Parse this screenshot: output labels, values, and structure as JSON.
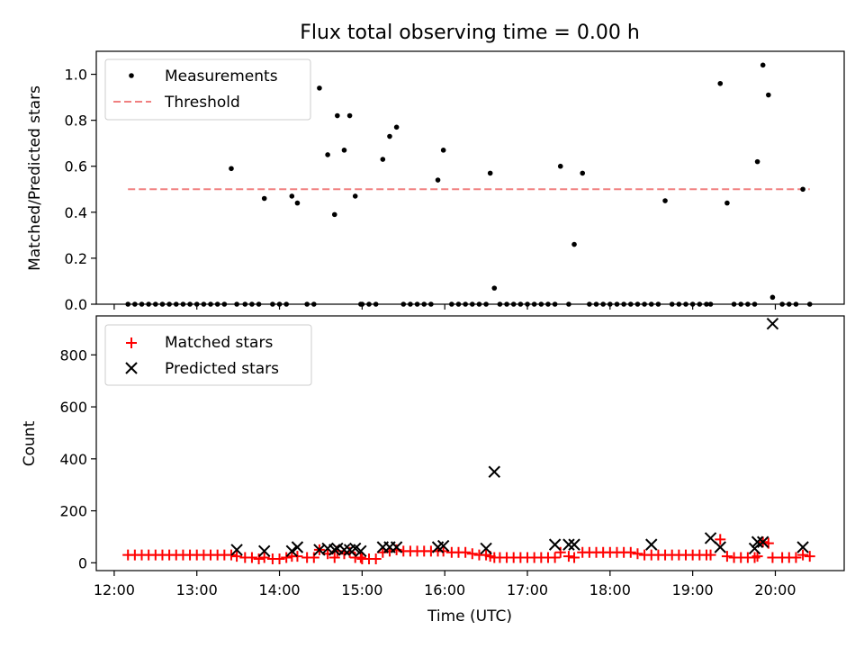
{
  "chart_data": [
    {
      "type": "scatter",
      "title": "Flux total observing time = 0.00 h",
      "ylabel": "Matched/Predicted stars",
      "ylim": [
        0,
        1.1
      ],
      "yticks": [
        "0.0",
        "0.2",
        "0.4",
        "0.6",
        "0.8",
        "1.0"
      ],
      "xlim": [
        "11:47",
        "20:50"
      ],
      "grid": false,
      "legend_position": "top-left",
      "threshold": {
        "name": "Threshold",
        "value": 0.5,
        "x_start": "12:10",
        "x_end": "20:25",
        "color": "#f08080"
      },
      "series": [
        {
          "name": "Measurements",
          "marker": "dot",
          "color": "#000000",
          "x": [
            "12:10",
            "12:15",
            "12:20",
            "12:25",
            "12:30",
            "12:35",
            "12:40",
            "12:45",
            "12:50",
            "12:55",
            "13:00",
            "13:05",
            "13:10",
            "13:15",
            "13:20",
            "13:25",
            "13:29",
            "13:35",
            "13:40",
            "13:45",
            "13:49",
            "13:55",
            "14:00",
            "14:05",
            "14:09",
            "14:13",
            "14:20",
            "14:25",
            "14:29",
            "14:35",
            "14:40",
            "14:42",
            "14:47",
            "14:51",
            "14:55",
            "14:59",
            "15:00",
            "15:05",
            "15:10",
            "15:15",
            "15:20",
            "15:25",
            "15:30",
            "15:35",
            "15:40",
            "15:45",
            "15:50",
            "15:55",
            "15:59",
            "16:05",
            "16:10",
            "16:15",
            "16:20",
            "16:25",
            "16:30",
            "16:33",
            "16:36",
            "16:40",
            "16:45",
            "16:50",
            "16:55",
            "17:00",
            "17:05",
            "17:10",
            "17:15",
            "17:20",
            "17:24",
            "17:30",
            "17:34",
            "17:40",
            "17:45",
            "17:50",
            "17:55",
            "18:00",
            "18:05",
            "18:10",
            "18:15",
            "18:20",
            "18:25",
            "18:30",
            "18:35",
            "18:40",
            "18:45",
            "18:50",
            "18:55",
            "19:00",
            "19:05",
            "19:10",
            "19:13",
            "19:20",
            "19:25",
            "19:30",
            "19:35",
            "19:40",
            "19:45",
            "19:47",
            "19:51",
            "19:55",
            "19:58",
            "20:05",
            "20:10",
            "20:15",
            "20:20",
            "20:25"
          ],
          "y": [
            0,
            0,
            0,
            0,
            0,
            0,
            0,
            0,
            0,
            0,
            0,
            0,
            0,
            0,
            0,
            0.59,
            0,
            0,
            0,
            0,
            0.46,
            0,
            0,
            0,
            0.47,
            0.44,
            0,
            0,
            0.94,
            0.65,
            0.39,
            0.82,
            0.67,
            0.82,
            0.47,
            0,
            0,
            0,
            0,
            0.63,
            0.73,
            0.77,
            0,
            0,
            0,
            0,
            0,
            0.54,
            0.67,
            0,
            0,
            0,
            0,
            0,
            0,
            0.57,
            0.07,
            0,
            0,
            0,
            0,
            0,
            0,
            0,
            0,
            0,
            0.6,
            0,
            0.26,
            0.57,
            0,
            0,
            0,
            0,
            0,
            0,
            0,
            0,
            0,
            0,
            0,
            0.45,
            0,
            0,
            0,
            0,
            0,
            0,
            0,
            0.96,
            0.44,
            0,
            0,
            0,
            0,
            0.62,
            1.04,
            0.91,
            0.03,
            0,
            0,
            0,
            0.5,
            0
          ]
        }
      ]
    },
    {
      "type": "scatter",
      "xlabel": "Time (UTC)",
      "ylabel": "Count",
      "ylim": [
        -30,
        950
      ],
      "yticks": [
        "0",
        "200",
        "400",
        "600",
        "800"
      ],
      "xticks": [
        "12:00",
        "13:00",
        "14:00",
        "15:00",
        "16:00",
        "17:00",
        "18:00",
        "19:00",
        "20:00"
      ],
      "xlim": [
        "11:47",
        "20:50"
      ],
      "grid": false,
      "legend_position": "top-left",
      "series": [
        {
          "name": "Matched stars",
          "marker": "plus",
          "color": "#ff0000",
          "x": [
            "12:10",
            "12:15",
            "12:20",
            "12:25",
            "12:30",
            "12:35",
            "12:40",
            "12:45",
            "12:50",
            "12:55",
            "13:00",
            "13:05",
            "13:10",
            "13:15",
            "13:20",
            "13:25",
            "13:29",
            "13:35",
            "13:40",
            "13:45",
            "13:49",
            "13:55",
            "14:00",
            "14:05",
            "14:09",
            "14:13",
            "14:20",
            "14:25",
            "14:29",
            "14:35",
            "14:40",
            "14:42",
            "14:47",
            "14:51",
            "14:55",
            "14:59",
            "15:00",
            "15:05",
            "15:10",
            "15:15",
            "15:20",
            "15:25",
            "15:30",
            "15:35",
            "15:40",
            "15:45",
            "15:50",
            "15:55",
            "15:59",
            "16:05",
            "16:10",
            "16:15",
            "16:20",
            "16:25",
            "16:30",
            "16:33",
            "16:36",
            "16:40",
            "16:45",
            "16:50",
            "16:55",
            "17:00",
            "17:05",
            "17:10",
            "17:15",
            "17:20",
            "17:24",
            "17:30",
            "17:34",
            "17:40",
            "17:45",
            "17:50",
            "17:55",
            "18:00",
            "18:05",
            "18:10",
            "18:15",
            "18:20",
            "18:25",
            "18:30",
            "18:35",
            "18:40",
            "18:45",
            "18:50",
            "18:55",
            "19:00",
            "19:05",
            "19:10",
            "19:13",
            "19:20",
            "19:25",
            "19:30",
            "19:35",
            "19:40",
            "19:45",
            "19:47",
            "19:51",
            "19:55",
            "19:58",
            "20:05",
            "20:10",
            "20:15",
            "20:20",
            "20:25"
          ],
          "y": [
            30,
            30,
            30,
            30,
            30,
            30,
            30,
            30,
            30,
            30,
            30,
            30,
            30,
            30,
            30,
            30,
            25,
            20,
            20,
            15,
            20,
            15,
            15,
            20,
            25,
            25,
            20,
            20,
            50,
            35,
            20,
            45,
            35,
            40,
            20,
            20,
            15,
            15,
            15,
            40,
            45,
            50,
            45,
            45,
            45,
            45,
            45,
            45,
            45,
            40,
            40,
            40,
            35,
            30,
            30,
            25,
            20,
            20,
            20,
            20,
            20,
            20,
            20,
            20,
            20,
            20,
            40,
            25,
            20,
            40,
            40,
            40,
            40,
            40,
            40,
            40,
            40,
            35,
            30,
            30,
            30,
            30,
            30,
            30,
            30,
            30,
            30,
            30,
            30,
            90,
            25,
            20,
            20,
            20,
            20,
            25,
            80,
            75,
            20,
            20,
            20,
            20,
            30,
            25
          ]
        },
        {
          "name": "Predicted stars",
          "marker": "x",
          "color": "#000000",
          "x": [
            "13:29",
            "13:49",
            "14:09",
            "14:13",
            "14:29",
            "14:35",
            "14:40",
            "14:42",
            "14:47",
            "14:51",
            "14:55",
            "14:59",
            "15:15",
            "15:20",
            "15:25",
            "15:55",
            "15:59",
            "16:30",
            "16:36",
            "17:20",
            "17:30",
            "17:34",
            "18:30",
            "19:13",
            "19:20",
            "19:45",
            "19:47",
            "19:51",
            "19:58",
            "20:20"
          ],
          "y": [
            50,
            45,
            45,
            60,
            50,
            55,
            50,
            55,
            50,
            50,
            55,
            45,
            60,
            60,
            60,
            60,
            65,
            55,
            350,
            70,
            70,
            70,
            70,
            95,
            60,
            55,
            80,
            80,
            920,
            60
          ]
        }
      ]
    }
  ]
}
